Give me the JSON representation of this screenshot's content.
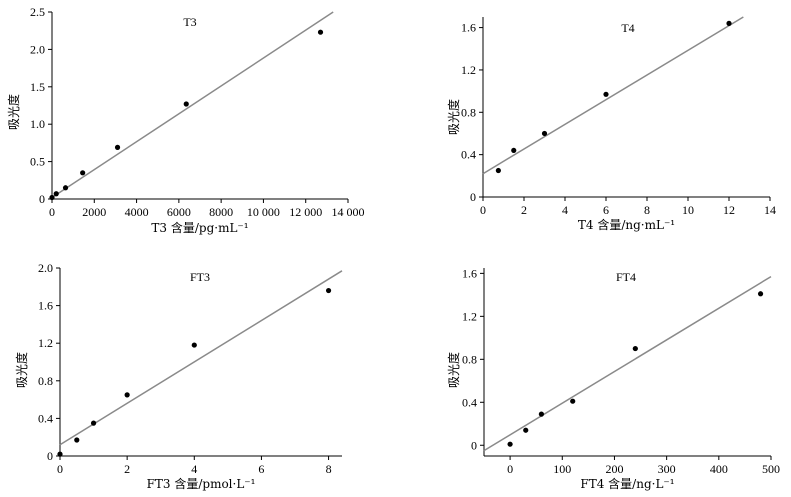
{
  "chart_data": [
    {
      "type": "scatter",
      "title": "T3",
      "xlabel": "T3 含量/pg·mL⁻¹",
      "ylabel": "吸光度",
      "xlim": [
        0,
        14000
      ],
      "ylim": [
        0,
        2.5
      ],
      "xticks": [
        0,
        2000,
        4000,
        6000,
        8000,
        10000,
        12000,
        14000
      ],
      "xtick_labels": [
        "0",
        "2000",
        "4000",
        "6000",
        "8000",
        "10 000",
        "12 000",
        "14 000"
      ],
      "yticks": [
        0,
        0.5,
        1.0,
        1.5,
        2.0,
        2.5
      ],
      "ytick_labels": [
        "0",
        "0.5",
        "1.0",
        "1.5",
        "2.0",
        "2.5"
      ],
      "points": [
        {
          "x": 0,
          "y": 0.02
        },
        {
          "x": 200,
          "y": 0.07
        },
        {
          "x": 640,
          "y": 0.15
        },
        {
          "x": 1450,
          "y": 0.35
        },
        {
          "x": 3100,
          "y": 0.69
        },
        {
          "x": 6350,
          "y": 1.27
        },
        {
          "x": 12700,
          "y": 2.23
        }
      ],
      "fit_line": [
        {
          "x": 0,
          "y": 0.02
        },
        {
          "x": 13300,
          "y": 2.5
        }
      ]
    },
    {
      "type": "scatter",
      "title": "T4",
      "xlabel": "T4 含量/ng·mL⁻¹",
      "ylabel": "吸光度",
      "xlim": [
        0,
        14
      ],
      "ylim": [
        0,
        1.7
      ],
      "xticks": [
        0,
        2,
        4,
        6,
        8,
        10,
        12,
        14
      ],
      "xtick_labels": [
        "0",
        "2",
        "4",
        "6",
        "8",
        "10",
        "12",
        "14"
      ],
      "yticks": [
        0,
        0.4,
        0.8,
        1.2,
        1.6
      ],
      "ytick_labels": [
        "0",
        "0.4",
        "0.8",
        "1.2",
        "1.6"
      ],
      "points": [
        {
          "x": 0.75,
          "y": 0.25
        },
        {
          "x": 1.5,
          "y": 0.44
        },
        {
          "x": 3.0,
          "y": 0.6
        },
        {
          "x": 6.0,
          "y": 0.97
        },
        {
          "x": 12.0,
          "y": 1.64
        }
      ],
      "fit_line": [
        {
          "x": 0,
          "y": 0.22
        },
        {
          "x": 12.7,
          "y": 1.7
        }
      ]
    },
    {
      "type": "scatter",
      "title": "FT3",
      "xlabel": "FT3 含量/pmol·L⁻¹",
      "ylabel": "吸光度",
      "xlim": [
        0,
        8.4
      ],
      "ylim": [
        0,
        2.0
      ],
      "xticks": [
        0,
        2,
        4,
        6,
        8
      ],
      "xtick_labels": [
        "0",
        "2",
        "4",
        "6",
        "8"
      ],
      "yticks": [
        0,
        0.4,
        0.8,
        1.2,
        1.6,
        2.0
      ],
      "ytick_labels": [
        "0",
        "0.4",
        "0.8",
        "1.2",
        "1.6",
        "2.0"
      ],
      "points": [
        {
          "x": 0,
          "y": 0.02
        },
        {
          "x": 0.5,
          "y": 0.17
        },
        {
          "x": 1.0,
          "y": 0.35
        },
        {
          "x": 2.0,
          "y": 0.65
        },
        {
          "x": 4.0,
          "y": 1.18
        },
        {
          "x": 8.0,
          "y": 1.76
        }
      ],
      "fit_line": [
        {
          "x": 0,
          "y": 0.12
        },
        {
          "x": 8.4,
          "y": 1.97
        }
      ]
    },
    {
      "type": "scatter",
      "title": "FT4",
      "xlabel": "FT4 含量/ng·L⁻¹",
      "ylabel": "吸光度",
      "xlim": [
        -50,
        500
      ],
      "ylim": [
        -0.1,
        1.65
      ],
      "xticks": [
        0,
        100,
        200,
        300,
        400,
        500
      ],
      "xtick_labels": [
        "0",
        "100",
        "200",
        "300",
        "400",
        "500"
      ],
      "yticks": [
        0,
        0.4,
        0.8,
        1.2,
        1.6
      ],
      "ytick_labels": [
        "0",
        "0.4",
        "0.8",
        "1.2",
        "1.6"
      ],
      "points": [
        {
          "x": 0,
          "y": 0.01
        },
        {
          "x": 30,
          "y": 0.14
        },
        {
          "x": 60,
          "y": 0.29
        },
        {
          "x": 120,
          "y": 0.41
        },
        {
          "x": 240,
          "y": 0.9
        },
        {
          "x": 480,
          "y": 1.41
        }
      ],
      "fit_line": [
        {
          "x": -50,
          "y": -0.05
        },
        {
          "x": 500,
          "y": 1.57
        }
      ]
    }
  ]
}
